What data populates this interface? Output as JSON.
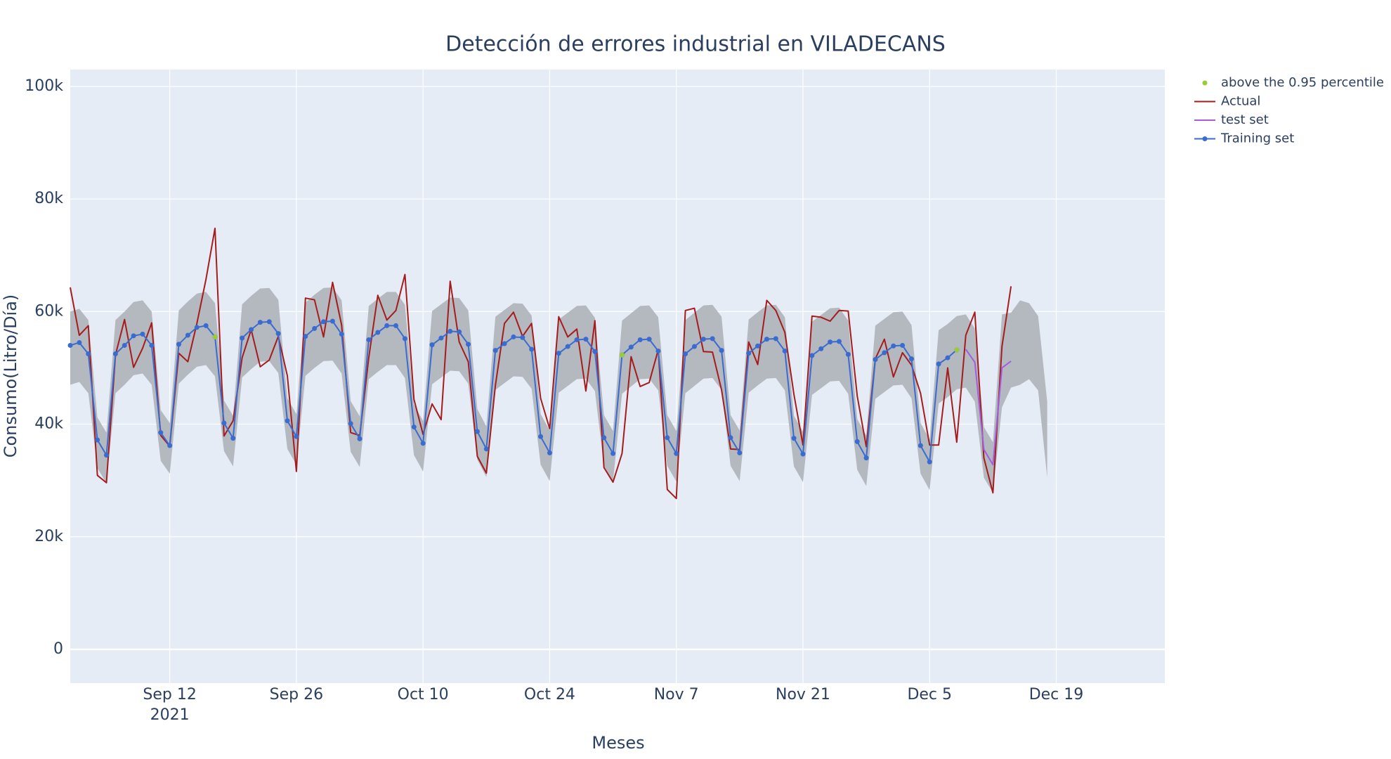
{
  "chart_data": {
    "type": "line",
    "title": "Detección de errores industrial en VILADECANS",
    "x_label": "Meses",
    "y_label": "Consumo(Litro/Día)",
    "x_year": "2021",
    "xlim": [
      "2021-09-01",
      "2021-12-31"
    ],
    "xticks": [
      {
        "value": "2021-09-12",
        "label": "Sep 12"
      },
      {
        "value": "2021-09-26",
        "label": "Sep 26"
      },
      {
        "value": "2021-10-10",
        "label": "Oct 10"
      },
      {
        "value": "2021-10-24",
        "label": "Oct 24"
      },
      {
        "value": "2021-11-07",
        "label": "Nov 7"
      },
      {
        "value": "2021-11-21",
        "label": "Nov 21"
      },
      {
        "value": "2021-12-05",
        "label": "Dec 5"
      },
      {
        "value": "2021-12-19",
        "label": "Dec 19"
      }
    ],
    "ylim": [
      -6000,
      103000
    ],
    "yticks": [
      0,
      {
        "value": 20000,
        "label": "20k"
      },
      {
        "value": 40000,
        "label": "40k"
      },
      {
        "value": 60000,
        "label": "60k"
      },
      {
        "value": 80000,
        "label": "80k"
      },
      {
        "value": 100000,
        "label": "100k"
      }
    ],
    "grid": true,
    "legend": "right",
    "x": [
      "2021-09-01",
      "2021-09-02",
      "2021-09-03",
      "2021-09-04",
      "2021-09-05",
      "2021-09-06",
      "2021-09-07",
      "2021-09-08",
      "2021-09-09",
      "2021-09-10",
      "2021-09-11",
      "2021-09-12",
      "2021-09-13",
      "2021-09-14",
      "2021-09-15",
      "2021-09-16",
      "2021-09-17",
      "2021-09-18",
      "2021-09-19",
      "2021-09-20",
      "2021-09-21",
      "2021-09-22",
      "2021-09-23",
      "2021-09-24",
      "2021-09-25",
      "2021-09-26",
      "2021-09-27",
      "2021-09-28",
      "2021-09-29",
      "2021-09-30",
      "2021-10-01",
      "2021-10-02",
      "2021-10-03",
      "2021-10-04",
      "2021-10-05",
      "2021-10-06",
      "2021-10-07",
      "2021-10-08",
      "2021-10-09",
      "2021-10-10",
      "2021-10-11",
      "2021-10-12",
      "2021-10-13",
      "2021-10-14",
      "2021-10-15",
      "2021-10-16",
      "2021-10-17",
      "2021-10-18",
      "2021-10-19",
      "2021-10-20",
      "2021-10-21",
      "2021-10-22",
      "2021-10-23",
      "2021-10-24",
      "2021-10-25",
      "2021-10-26",
      "2021-10-27",
      "2021-10-28",
      "2021-10-29",
      "2021-10-30",
      "2021-10-31",
      "2021-11-01",
      "2021-11-02",
      "2021-11-03",
      "2021-11-04",
      "2021-11-05",
      "2021-11-06",
      "2021-11-07",
      "2021-11-08",
      "2021-11-09",
      "2021-11-10",
      "2021-11-11",
      "2021-11-12",
      "2021-11-13",
      "2021-11-14",
      "2021-11-15",
      "2021-11-16",
      "2021-11-17",
      "2021-11-18",
      "2021-11-19",
      "2021-11-20",
      "2021-11-21",
      "2021-11-22",
      "2021-11-23",
      "2021-11-24",
      "2021-11-25",
      "2021-11-26",
      "2021-11-27",
      "2021-11-28",
      "2021-11-29",
      "2021-11-30",
      "2021-12-01",
      "2021-12-02",
      "2021-12-03",
      "2021-12-04",
      "2021-12-05",
      "2021-12-06",
      "2021-12-07",
      "2021-12-08",
      "2021-12-09",
      "2021-12-10",
      "2021-12-11",
      "2021-12-12",
      "2021-12-13",
      "2021-12-14",
      "2021-12-15",
      "2021-12-16",
      "2021-12-17",
      "2021-12-18"
    ],
    "band": {
      "color": "#b4b8bf",
      "upper": [
        60000,
        60500,
        58500,
        41200,
        38500,
        58500,
        60000,
        61700,
        62000,
        60000,
        42500,
        40200,
        60200,
        61800,
        63200,
        63500,
        61500,
        44200,
        41500,
        61300,
        62800,
        64100,
        64200,
        62100,
        44600,
        41800,
        61600,
        63000,
        64200,
        64300,
        62000,
        44100,
        41400,
        61000,
        62300,
        63500,
        63500,
        61200,
        43500,
        40600,
        60100,
        61300,
        62500,
        62400,
        60200,
        42700,
        39600,
        59100,
        60300,
        61500,
        61400,
        59300,
        41800,
        38900,
        58600,
        59800,
        61000,
        61100,
        58900,
        41600,
        38800,
        58400,
        59700,
        61000,
        61100,
        59000,
        41600,
        38800,
        58500,
        59800,
        61100,
        61200,
        59100,
        41600,
        38900,
        58600,
        59900,
        61100,
        61200,
        59000,
        41500,
        38700,
        58200,
        59400,
        60600,
        60700,
        58400,
        40900,
        38000,
        57500,
        58700,
        59900,
        60000,
        57600,
        40200,
        37300,
        56700,
        57800,
        59200,
        59500,
        57000,
        39500,
        36800,
        59500,
        59800,
        62000,
        61500,
        59200,
        44000
      ],
      "lower": [
        47000,
        47500,
        45500,
        32200,
        29500,
        45500,
        47000,
        48700,
        49000,
        47000,
        33500,
        31200,
        47200,
        48800,
        50200,
        50500,
        48500,
        35200,
        32500,
        48300,
        49800,
        51100,
        51200,
        49100,
        35600,
        32800,
        48600,
        50000,
        51200,
        51300,
        49000,
        35100,
        32400,
        48000,
        49300,
        50500,
        50500,
        48200,
        34500,
        31600,
        47100,
        48300,
        49500,
        49400,
        47200,
        33700,
        30600,
        46100,
        47300,
        48500,
        48400,
        46300,
        32800,
        29900,
        45600,
        46800,
        48000,
        48100,
        45900,
        32600,
        29800,
        45400,
        46700,
        48000,
        48100,
        46000,
        32600,
        29800,
        45500,
        46800,
        48100,
        48200,
        46100,
        32600,
        29900,
        45600,
        46900,
        48100,
        48200,
        46000,
        32500,
        29700,
        45200,
        46400,
        47600,
        47700,
        45400,
        31900,
        29000,
        44500,
        45700,
        46900,
        47000,
        44600,
        31200,
        28300,
        43700,
        44800,
        46200,
        46500,
        44000,
        30500,
        27800,
        43000,
        46500,
        47000,
        48000,
        46000,
        30500
      ]
    },
    "series": [
      {
        "name": "above the 0.95 percentile",
        "mode": "markers",
        "color": "#9acd32",
        "x": [
          "2021-09-17",
          "2021-11-01",
          "2021-12-08"
        ],
        "values": [
          55500,
          52300,
          53200
        ]
      },
      {
        "name": "Actual",
        "mode": "lines",
        "color": "#a51c1c",
        "values": [
          64300,
          55800,
          57500,
          30900,
          29600,
          52300,
          58600,
          50100,
          53500,
          58000,
          38000,
          36100,
          52600,
          51100,
          57900,
          65700,
          74800,
          37900,
          40600,
          51800,
          56800,
          50200,
          51400,
          55600,
          48600,
          31600,
          62400,
          62100,
          55500,
          65200,
          57600,
          38500,
          38000,
          51800,
          62900,
          58500,
          60200,
          66600,
          44400,
          38200,
          43600,
          40800,
          65400,
          54600,
          51100,
          34300,
          31300,
          46900,
          57900,
          59900,
          55600,
          57900,
          44600,
          39200,
          59100,
          55500,
          56900,
          45900,
          58400,
          32300,
          29700,
          34800,
          52000,
          46700,
          47400,
          53200,
          28400,
          26800,
          60200,
          60600,
          52900,
          52800,
          46100,
          35600,
          35500,
          54600,
          50600,
          62000,
          60200,
          56300,
          45300,
          36300,
          59200,
          59000,
          58300,
          60200,
          60100,
          45000,
          36000,
          51600,
          55100,
          48400,
          52700,
          50500,
          45500,
          36300,
          36300,
          50000,
          36800,
          55800,
          59900,
          34000,
          27800,
          53800,
          64500,
          null,
          null,
          null,
          null
        ]
      },
      {
        "name": "test set",
        "mode": "lines",
        "color": "#a25ddc",
        "x": [
          "2021-12-09",
          "2021-12-10",
          "2021-12-11",
          "2021-12-12",
          "2021-12-13",
          "2021-12-14"
        ],
        "values": [
          53300,
          51000,
          35500,
          32800,
          50000,
          51200
        ]
      },
      {
        "name": "Training set",
        "mode": "lines+markers",
        "color": "#3a6bd0",
        "values": [
          54000,
          54500,
          52500,
          37200,
          34500,
          52500,
          54000,
          55700,
          56000,
          54000,
          38500,
          36200,
          54200,
          55800,
          57200,
          57500,
          55500,
          40200,
          37500,
          55300,
          56800,
          58100,
          58200,
          56100,
          40600,
          37800,
          55600,
          57000,
          58200,
          58300,
          56000,
          40100,
          37400,
          55000,
          56300,
          57500,
          57500,
          55200,
          39500,
          36600,
          54100,
          55300,
          56500,
          56400,
          54200,
          38700,
          35600,
          53100,
          54300,
          55500,
          55400,
          53300,
          37800,
          34900,
          52600,
          53800,
          55000,
          55100,
          52900,
          37600,
          34800,
          52300,
          53700,
          55000,
          55100,
          53000,
          37600,
          34800,
          52500,
          53800,
          55100,
          55200,
          53100,
          37600,
          34900,
          52600,
          53900,
          55100,
          55200,
          53000,
          37500,
          34700,
          52200,
          53400,
          54600,
          54700,
          52400,
          36900,
          34000,
          51500,
          52700,
          53900,
          54000,
          51600,
          36200,
          33300,
          50700,
          51800,
          53200,
          null,
          null,
          null,
          null,
          null,
          null,
          null,
          null,
          null,
          null
        ]
      }
    ]
  }
}
